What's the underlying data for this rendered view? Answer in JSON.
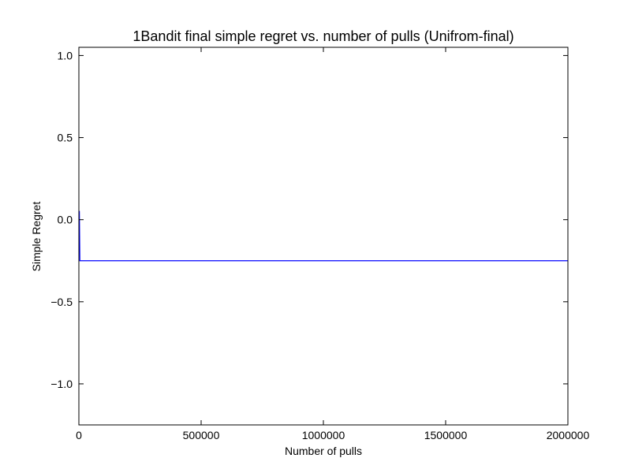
{
  "chart_data": {
    "type": "line",
    "title": "1Bandit final simple regret vs. number of pulls (Unifrom-final)",
    "xlabel": "Number of pulls",
    "ylabel": "Simple Regret",
    "xlim": [
      0,
      2000000
    ],
    "ylim": [
      -1.25,
      1.05
    ],
    "xticks": [
      0,
      500000,
      1000000,
      1500000,
      2000000
    ],
    "xtick_labels": [
      "0",
      "500000",
      "1000000",
      "1500000",
      "2000000"
    ],
    "yticks": [
      -1.0,
      -0.5,
      0.0,
      0.5,
      1.0
    ],
    "ytick_labels": [
      "−1.0",
      "−0.5",
      "0.0",
      "0.5",
      "1.0"
    ],
    "grid": false,
    "series": [
      {
        "color": "#0000ff",
        "x": [
          0,
          2000,
          4000,
          2000000
        ],
        "y": [
          0.05,
          0.05,
          -0.25,
          -0.25
        ]
      }
    ]
  }
}
